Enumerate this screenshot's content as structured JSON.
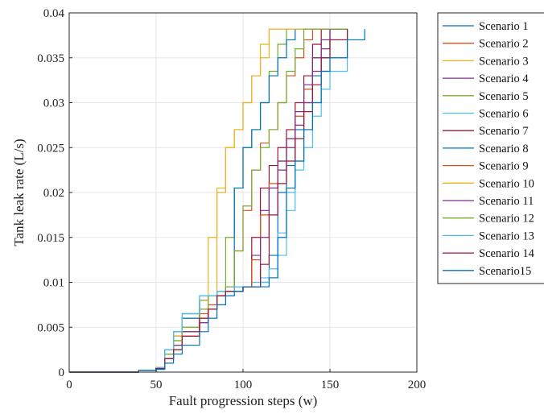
{
  "chart_data": {
    "type": "line",
    "title": "",
    "xlabel": "Fault progression steps (w)",
    "ylabel": "Tank leak rate (L/s)",
    "xlim": [
      0,
      200
    ],
    "ylim": [
      0,
      0.04
    ],
    "xticks": [
      "0",
      "50",
      "100",
      "150",
      "200"
    ],
    "yticks": [
      "0",
      "0.005",
      "0.01",
      "0.015",
      "0.02",
      "0.025",
      "0.03",
      "0.035",
      "0.04"
    ],
    "grid": true,
    "legend_position": "outside-right",
    "series": [
      {
        "name": "Scenario 1",
        "color": "#0072BD",
        "x": [
          0,
          40,
          50,
          55,
          60,
          65,
          75,
          80,
          85,
          90,
          95,
          100,
          105,
          110,
          115,
          120,
          125,
          130,
          135,
          140,
          145,
          150,
          160
        ],
        "y": [
          0,
          0.0002,
          0.0005,
          0.002,
          0.004,
          0.0065,
          0.008,
          0.0085,
          0.009,
          0.009,
          0.0095,
          0.0095,
          0.0095,
          0.01,
          0.013,
          0.02,
          0.023,
          0.027,
          0.03,
          0.033,
          0.035,
          0.037,
          0.0382
        ]
      },
      {
        "name": "Scenario 2",
        "color": "#D95319",
        "x": [
          0,
          40,
          50,
          55,
          60,
          65,
          75,
          80,
          85,
          90,
          95,
          100,
          105,
          110,
          115,
          120,
          125,
          130,
          135,
          140,
          145,
          150,
          160
        ],
        "y": [
          0,
          0.0002,
          0.0004,
          0.0015,
          0.003,
          0.0045,
          0.007,
          0.0085,
          0.009,
          0.0095,
          0.0135,
          0.018,
          0.0225,
          0.0255,
          0.027,
          0.03,
          0.033,
          0.035,
          0.037,
          0.0382,
          0.0382,
          0.0382,
          0.0382
        ]
      },
      {
        "name": "Scenario 3",
        "color": "#EDB120",
        "x": [
          0,
          40,
          50,
          55,
          60,
          65,
          75,
          80,
          85,
          90,
          95,
          100,
          105,
          110,
          115,
          120,
          125,
          130,
          135,
          140,
          145,
          150,
          160
        ],
        "y": [
          0,
          0.0002,
          0.0005,
          0.002,
          0.0035,
          0.005,
          0.007,
          0.0085,
          0.02,
          0.025,
          0.027,
          0.03,
          0.033,
          0.0365,
          0.0382,
          0.0382,
          0.0382,
          0.0382,
          0.0382,
          0.0382,
          0.0382,
          0.0382,
          0.0382
        ]
      },
      {
        "name": "Scenario 4",
        "color": "#7E2F8E",
        "x": [
          0,
          40,
          50,
          55,
          60,
          65,
          75,
          80,
          85,
          90,
          95,
          100,
          105,
          110,
          115,
          120,
          125,
          130,
          135,
          140,
          145,
          150,
          160
        ],
        "y": [
          0,
          0.0002,
          0.0004,
          0.0015,
          0.003,
          0.0045,
          0.0055,
          0.007,
          0.0085,
          0.009,
          0.009,
          0.0095,
          0.013,
          0.018,
          0.0205,
          0.0225,
          0.025,
          0.0275,
          0.03,
          0.0335,
          0.036,
          0.0382,
          0.0382
        ]
      },
      {
        "name": "Scenario 5",
        "color": "#77AC30",
        "x": [
          0,
          40,
          50,
          55,
          60,
          65,
          75,
          80,
          85,
          90,
          95,
          100,
          105,
          110,
          115,
          120,
          125,
          130,
          135,
          140,
          145,
          150,
          160
        ],
        "y": [
          0,
          0.0002,
          0.0005,
          0.002,
          0.004,
          0.006,
          0.008,
          0.0085,
          0.009,
          0.015,
          0.0205,
          0.025,
          0.027,
          0.03,
          0.0335,
          0.0365,
          0.0382,
          0.0382,
          0.0382,
          0.0382,
          0.0382,
          0.0382,
          0.0382
        ]
      },
      {
        "name": "Scenario 6",
        "color": "#4DBEEE",
        "x": [
          0,
          40,
          50,
          55,
          60,
          65,
          75,
          80,
          85,
          90,
          95,
          100,
          105,
          110,
          115,
          120,
          125,
          130,
          135,
          140,
          145,
          150,
          160
        ],
        "y": [
          0,
          0.0002,
          0.0005,
          0.0025,
          0.0045,
          0.0065,
          0.0085,
          0.0085,
          0.009,
          0.009,
          0.0095,
          0.0095,
          0.01,
          0.0105,
          0.0115,
          0.0155,
          0.02,
          0.0235,
          0.027,
          0.03,
          0.0335,
          0.035,
          0.0382
        ]
      },
      {
        "name": "Scenario 7",
        "color": "#A2142F",
        "x": [
          0,
          40,
          50,
          55,
          60,
          65,
          75,
          80,
          85,
          90,
          95,
          100,
          105,
          110,
          115,
          120,
          125,
          130,
          135,
          140,
          145,
          150,
          160
        ],
        "y": [
          0,
          0.0002,
          0.0004,
          0.0015,
          0.0025,
          0.004,
          0.006,
          0.007,
          0.0085,
          0.009,
          0.009,
          0.0095,
          0.015,
          0.0205,
          0.023,
          0.025,
          0.027,
          0.03,
          0.033,
          0.0365,
          0.0382,
          0.0382,
          0.0382
        ]
      },
      {
        "name": "Scenario 8",
        "color": "#0072BD",
        "x": [
          0,
          40,
          50,
          55,
          60,
          65,
          75,
          80,
          85,
          90,
          95,
          100,
          105,
          110,
          115,
          120,
          125,
          130,
          135,
          140,
          145,
          150,
          160
        ],
        "y": [
          0,
          0.0002,
          0.0005,
          0.0025,
          0.0045,
          0.006,
          0.008,
          0.0085,
          0.009,
          0.009,
          0.0205,
          0.025,
          0.027,
          0.03,
          0.033,
          0.035,
          0.037,
          0.0382,
          0.0382,
          0.0382,
          0.0382,
          0.0382,
          0.0382
        ]
      },
      {
        "name": "Scenario 9",
        "color": "#D95319",
        "x": [
          0,
          40,
          50,
          55,
          60,
          65,
          75,
          80,
          85,
          90,
          95,
          100,
          105,
          110,
          115,
          120,
          125,
          130,
          135,
          140,
          145,
          150,
          160
        ],
        "y": [
          0,
          0.0002,
          0.0004,
          0.0015,
          0.003,
          0.0045,
          0.0065,
          0.0075,
          0.0085,
          0.009,
          0.009,
          0.0095,
          0.0125,
          0.0175,
          0.021,
          0.0235,
          0.026,
          0.0285,
          0.0315,
          0.035,
          0.037,
          0.0382,
          0.0382
        ]
      },
      {
        "name": "Scenario 10",
        "color": "#EDB120",
        "x": [
          0,
          40,
          50,
          55,
          60,
          65,
          75,
          80,
          85,
          90,
          95,
          100,
          105,
          110,
          115,
          120,
          125,
          130,
          135,
          140,
          145,
          150,
          160
        ],
        "y": [
          0,
          0.0002,
          0.0005,
          0.002,
          0.004,
          0.0065,
          0.008,
          0.015,
          0.0205,
          0.025,
          0.027,
          0.03,
          0.033,
          0.035,
          0.0382,
          0.0382,
          0.0382,
          0.0382,
          0.0382,
          0.0382,
          0.0382,
          0.0382,
          0.0382
        ]
      },
      {
        "name": "Scenario 11",
        "color": "#7E2F8E",
        "x": [
          0,
          40,
          50,
          55,
          60,
          65,
          75,
          80,
          85,
          90,
          95,
          100,
          105,
          110,
          115,
          120,
          125,
          130,
          135,
          140,
          145,
          150,
          160
        ],
        "y": [
          0,
          0.0002,
          0.0004,
          0.0015,
          0.003,
          0.0045,
          0.0055,
          0.007,
          0.0085,
          0.009,
          0.009,
          0.0095,
          0.0095,
          0.015,
          0.0205,
          0.0235,
          0.026,
          0.029,
          0.032,
          0.035,
          0.037,
          0.0382,
          0.0382
        ]
      },
      {
        "name": "Scenario 12",
        "color": "#77AC30",
        "x": [
          0,
          40,
          50,
          55,
          60,
          65,
          75,
          80,
          85,
          90,
          95,
          100,
          105,
          110,
          115,
          120,
          125,
          130,
          135,
          140,
          145,
          150,
          160
        ],
        "y": [
          0,
          0.0002,
          0.0005,
          0.002,
          0.0035,
          0.005,
          0.007,
          0.0085,
          0.009,
          0.0095,
          0.0135,
          0.0185,
          0.0225,
          0.025,
          0.027,
          0.03,
          0.0335,
          0.036,
          0.0382,
          0.0382,
          0.0382,
          0.0382,
          0.0382
        ]
      },
      {
        "name": "Scenario 13",
        "color": "#4DBEEE",
        "x": [
          0,
          40,
          50,
          55,
          60,
          65,
          75,
          80,
          85,
          90,
          95,
          100,
          105,
          110,
          115,
          120,
          125,
          130,
          135,
          140,
          145,
          150,
          160
        ],
        "y": [
          0,
          0.0002,
          0.0005,
          0.0025,
          0.0045,
          0.0065,
          0.0085,
          0.0085,
          0.009,
          0.009,
          0.0095,
          0.0095,
          0.0095,
          0.01,
          0.0105,
          0.013,
          0.018,
          0.0225,
          0.025,
          0.0285,
          0.0315,
          0.0335,
          0.0382
        ]
      },
      {
        "name": "Scenario 14",
        "color": "#A2142F",
        "x": [
          0,
          40,
          50,
          55,
          60,
          65,
          75,
          80,
          85,
          90,
          95,
          100,
          105,
          110,
          115,
          120,
          125,
          130,
          135,
          140,
          145,
          150,
          160
        ],
        "y": [
          0,
          0.0002,
          0.0004,
          0.0015,
          0.0025,
          0.004,
          0.006,
          0.007,
          0.0085,
          0.009,
          0.009,
          0.0095,
          0.0095,
          0.012,
          0.0175,
          0.021,
          0.0235,
          0.026,
          0.029,
          0.032,
          0.035,
          0.037,
          0.0382
        ]
      },
      {
        "name": "Scenario15",
        "color": "#0072BD",
        "x": [
          0,
          40,
          50,
          55,
          60,
          65,
          75,
          80,
          85,
          90,
          95,
          100,
          105,
          110,
          115,
          120,
          125,
          130,
          135,
          140,
          145,
          150,
          160,
          170
        ],
        "y": [
          0,
          0.0002,
          0.0003,
          0.001,
          0.002,
          0.003,
          0.0045,
          0.006,
          0.0075,
          0.0085,
          0.009,
          0.0095,
          0.0095,
          0.0095,
          0.0105,
          0.015,
          0.0205,
          0.0235,
          0.027,
          0.03,
          0.0335,
          0.035,
          0.037,
          0.0382
        ]
      }
    ]
  }
}
